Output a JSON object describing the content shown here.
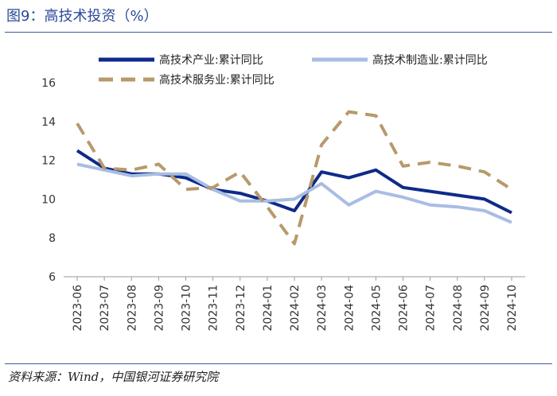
{
  "header": {
    "title": "图9：高技术投资（%）"
  },
  "footer": {
    "source": "资料来源：Wind，中国银河证券研究院"
  },
  "colors": {
    "series1": "#0f2a8a",
    "series2": "#a9bde3",
    "series3": "#b79a6c",
    "rule": "#3c5aa0",
    "title": "#2b4a9a"
  },
  "chart_data": {
    "type": "line",
    "title": "高技术投资（%）",
    "xlabel": "",
    "ylabel": "",
    "ylim": [
      6,
      16
    ],
    "yticks": [
      6,
      8,
      10,
      12,
      14,
      16
    ],
    "grid": false,
    "legend_position": "top",
    "categories": [
      "2023-06",
      "2023-07",
      "2023-08",
      "2023-09",
      "2023-10",
      "2023-11",
      "2023-12",
      "2024-01",
      "2024-02",
      "2024-03",
      "2024-04",
      "2024-05",
      "2024-06",
      "2024-07",
      "2024-08",
      "2024-09",
      "2024-10"
    ],
    "series": [
      {
        "name": "高技术产业:累计同比",
        "style": "solid",
        "color": "#0f2a8a",
        "values": [
          12.5,
          11.6,
          11.3,
          11.3,
          11.1,
          10.5,
          10.3,
          9.9,
          9.4,
          11.4,
          11.1,
          11.5,
          10.6,
          10.4,
          10.2,
          10.0,
          9.3
        ]
      },
      {
        "name": "高技术制造业:累计同比",
        "style": "solid",
        "color": "#a9bde3",
        "values": [
          11.8,
          11.5,
          11.2,
          11.3,
          11.3,
          10.5,
          9.9,
          9.9,
          10.0,
          10.8,
          9.7,
          10.4,
          10.1,
          9.7,
          9.6,
          9.4,
          8.8
        ]
      },
      {
        "name": "高技术服务业:累计同比",
        "style": "dashed",
        "color": "#b79a6c",
        "values": [
          13.9,
          11.6,
          11.5,
          11.8,
          10.5,
          10.6,
          11.4,
          9.6,
          7.7,
          12.8,
          14.5,
          14.3,
          11.7,
          11.9,
          11.7,
          11.4,
          10.5
        ]
      }
    ]
  }
}
